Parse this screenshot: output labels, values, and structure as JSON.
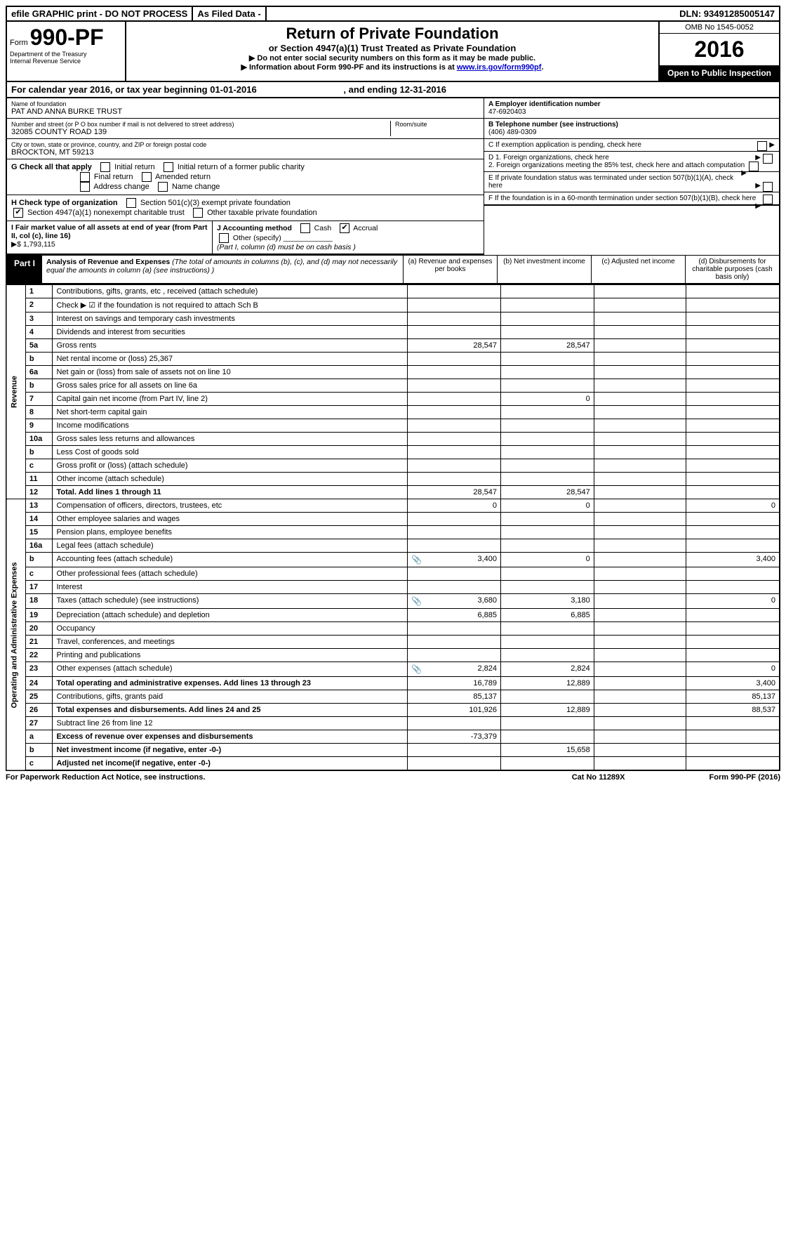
{
  "top_bar": {
    "efile": "efile GRAPHIC print - DO NOT PROCESS",
    "asfiled": "As Filed Data -",
    "dln": "DLN: 93491285005147"
  },
  "header": {
    "form_label": "Form",
    "form_number": "990-PF",
    "dept1": "Department of the Treasury",
    "dept2": "Internal Revenue Service",
    "title": "Return of Private Foundation",
    "subtitle": "or Section 4947(a)(1) Trust Treated as Private Foundation",
    "note1": "▶  Do not enter social security numbers on this form as it may be made public.",
    "note2_pre": "▶ Information about Form 990-PF and its instructions is at ",
    "note2_link": "www.irs.gov/form990pf",
    "omb": "OMB No  1545-0052",
    "year": "2016",
    "open": "Open to Public Inspection"
  },
  "cal_year": {
    "text_a": "For calendar year 2016, or tax year beginning 01-01-2016",
    "text_b": ", and ending 12-31-2016"
  },
  "org": {
    "name_lbl": "Name of foundation",
    "name": "PAT AND ANNA BURKE TRUST",
    "addr_lbl": "Number and street (or P O  box number if mail is not delivered to street address)",
    "addr": "32085 COUNTY ROAD 139",
    "room_lbl": "Room/suite",
    "city_lbl": "City or town, state or province, country, and ZIP or foreign postal code",
    "city": "BROCKTON, MT  59213"
  },
  "right_info": {
    "a_lbl": "A Employer identification number",
    "a_val": "47-6920403",
    "b_lbl": "B Telephone number (see instructions)",
    "b_val": "(406) 489-0309",
    "c_lbl": "C If exemption application is pending, check here",
    "d1": "D 1. Foreign organizations, check here",
    "d2": "2. Foreign organizations meeting the 85% test, check here and attach computation",
    "e": "E  If private foundation status was terminated under section 507(b)(1)(A), check here",
    "f": "F  If the foundation is in a 60-month termination under section 507(b)(1)(B), check here"
  },
  "g": {
    "lbl": "G Check all that apply",
    "opts": [
      "Initial return",
      "Initial return of a former public charity",
      "Final return",
      "Amended return",
      "Address change",
      "Name change"
    ]
  },
  "h": {
    "lbl": "H Check type of organization",
    "opt1": "Section 501(c)(3) exempt private foundation",
    "opt2": "Section 4947(a)(1) nonexempt charitable trust",
    "opt3": "Other taxable private foundation"
  },
  "i": {
    "lbl": "I Fair market value of all assets at end of year (from Part II, col  (c), line 16)",
    "val": "▶$  1,793,115"
  },
  "j": {
    "lbl": "J Accounting method",
    "cash": "Cash",
    "accrual": "Accrual",
    "other": "Other (specify)",
    "note": "(Part I, column (d) must be on cash basis )"
  },
  "part1": {
    "label": "Part I",
    "title": "Analysis of Revenue and Expenses",
    "title_note": "(The total of amounts in columns (b), (c), and (d) may not necessarily equal the amounts in column (a) (see instructions) )",
    "col_a": "(a) Revenue and expenses per books",
    "col_b": "(b) Net investment income",
    "col_c": "(c) Adjusted net income",
    "col_d": "(d) Disbursements for charitable purposes (cash basis only)"
  },
  "side_labels": {
    "revenue": "Revenue",
    "expenses": "Operating and Administrative Expenses"
  },
  "rows": [
    {
      "n": "1",
      "d": "Contributions, gifts, grants, etc , received (attach schedule)",
      "a": "",
      "b": "",
      "c": "",
      "dd": ""
    },
    {
      "n": "2",
      "d": "Check ▶ ☑ if the foundation is not required to attach Sch  B",
      "a": "",
      "b": "",
      "c": "",
      "dd": ""
    },
    {
      "n": "3",
      "d": "Interest on savings and temporary cash investments",
      "a": "",
      "b": "",
      "c": "",
      "dd": ""
    },
    {
      "n": "4",
      "d": "Dividends and interest from securities",
      "a": "",
      "b": "",
      "c": "",
      "dd": ""
    },
    {
      "n": "5a",
      "d": "Gross rents",
      "a": "28,547",
      "b": "28,547",
      "c": "",
      "dd": ""
    },
    {
      "n": "b",
      "d": "Net rental income or (loss)                           25,367",
      "a": "",
      "b": "",
      "c": "",
      "dd": ""
    },
    {
      "n": "6a",
      "d": "Net gain or (loss) from sale of assets not on line 10",
      "a": "",
      "b": "",
      "c": "",
      "dd": ""
    },
    {
      "n": "b",
      "d": "Gross sales price for all assets on line 6a",
      "a": "",
      "b": "",
      "c": "",
      "dd": ""
    },
    {
      "n": "7",
      "d": "Capital gain net income (from Part IV, line 2)",
      "a": "",
      "b": "0",
      "c": "",
      "dd": ""
    },
    {
      "n": "8",
      "d": "Net short-term capital gain",
      "a": "",
      "b": "",
      "c": "",
      "dd": ""
    },
    {
      "n": "9",
      "d": "Income modifications",
      "a": "",
      "b": "",
      "c": "",
      "dd": ""
    },
    {
      "n": "10a",
      "d": "Gross sales less returns and allowances",
      "a": "",
      "b": "",
      "c": "",
      "dd": ""
    },
    {
      "n": "b",
      "d": "Less  Cost of goods sold",
      "a": "",
      "b": "",
      "c": "",
      "dd": ""
    },
    {
      "n": "c",
      "d": "Gross profit or (loss) (attach schedule)",
      "a": "",
      "b": "",
      "c": "",
      "dd": ""
    },
    {
      "n": "11",
      "d": "Other income (attach schedule)",
      "a": "",
      "b": "",
      "c": "",
      "dd": ""
    },
    {
      "n": "12",
      "d": "Total. Add lines 1 through 11",
      "a": "28,547",
      "b": "28,547",
      "c": "",
      "dd": "",
      "bold": true
    }
  ],
  "exp_rows": [
    {
      "n": "13",
      "d": "Compensation of officers, directors, trustees, etc",
      "a": "0",
      "b": "0",
      "c": "",
      "dd": "0"
    },
    {
      "n": "14",
      "d": "Other employee salaries and wages",
      "a": "",
      "b": "",
      "c": "",
      "dd": ""
    },
    {
      "n": "15",
      "d": "Pension plans, employee benefits",
      "a": "",
      "b": "",
      "c": "",
      "dd": ""
    },
    {
      "n": "16a",
      "d": "Legal fees (attach schedule)",
      "a": "",
      "b": "",
      "c": "",
      "dd": ""
    },
    {
      "n": "b",
      "d": "Accounting fees (attach schedule)",
      "a": "3,400",
      "b": "0",
      "c": "",
      "dd": "3,400",
      "attach": true
    },
    {
      "n": "c",
      "d": "Other professional fees (attach schedule)",
      "a": "",
      "b": "",
      "c": "",
      "dd": ""
    },
    {
      "n": "17",
      "d": "Interest",
      "a": "",
      "b": "",
      "c": "",
      "dd": ""
    },
    {
      "n": "18",
      "d": "Taxes (attach schedule) (see instructions)",
      "a": "3,680",
      "b": "3,180",
      "c": "",
      "dd": "0",
      "attach": true
    },
    {
      "n": "19",
      "d": "Depreciation (attach schedule) and depletion",
      "a": "6,885",
      "b": "6,885",
      "c": "",
      "dd": ""
    },
    {
      "n": "20",
      "d": "Occupancy",
      "a": "",
      "b": "",
      "c": "",
      "dd": ""
    },
    {
      "n": "21",
      "d": "Travel, conferences, and meetings",
      "a": "",
      "b": "",
      "c": "",
      "dd": ""
    },
    {
      "n": "22",
      "d": "Printing and publications",
      "a": "",
      "b": "",
      "c": "",
      "dd": ""
    },
    {
      "n": "23",
      "d": "Other expenses (attach schedule)",
      "a": "2,824",
      "b": "2,824",
      "c": "",
      "dd": "0",
      "attach": true
    },
    {
      "n": "24",
      "d": "Total operating and administrative expenses. Add lines 13 through 23",
      "a": "16,789",
      "b": "12,889",
      "c": "",
      "dd": "3,400",
      "bold": true
    },
    {
      "n": "25",
      "d": "Contributions, gifts, grants paid",
      "a": "85,137",
      "b": "",
      "c": "",
      "dd": "85,137"
    },
    {
      "n": "26",
      "d": "Total expenses and disbursements. Add lines 24 and 25",
      "a": "101,926",
      "b": "12,889",
      "c": "",
      "dd": "88,537",
      "bold": true
    },
    {
      "n": "27",
      "d": "Subtract line 26 from line 12",
      "a": "",
      "b": "",
      "c": "",
      "dd": ""
    },
    {
      "n": "a",
      "d": "Excess of revenue over expenses and disbursements",
      "a": "-73,379",
      "b": "",
      "c": "",
      "dd": "",
      "bold": true
    },
    {
      "n": "b",
      "d": "Net investment income (if negative, enter -0-)",
      "a": "",
      "b": "15,658",
      "c": "",
      "dd": "",
      "bold": true
    },
    {
      "n": "c",
      "d": "Adjusted net income(if negative, enter -0-)",
      "a": "",
      "b": "",
      "c": "",
      "dd": "",
      "bold": true
    }
  ],
  "footer": {
    "left": "For Paperwork Reduction Act Notice, see instructions.",
    "mid": "Cat  No  11289X",
    "right": "Form 990-PF (2016)"
  }
}
